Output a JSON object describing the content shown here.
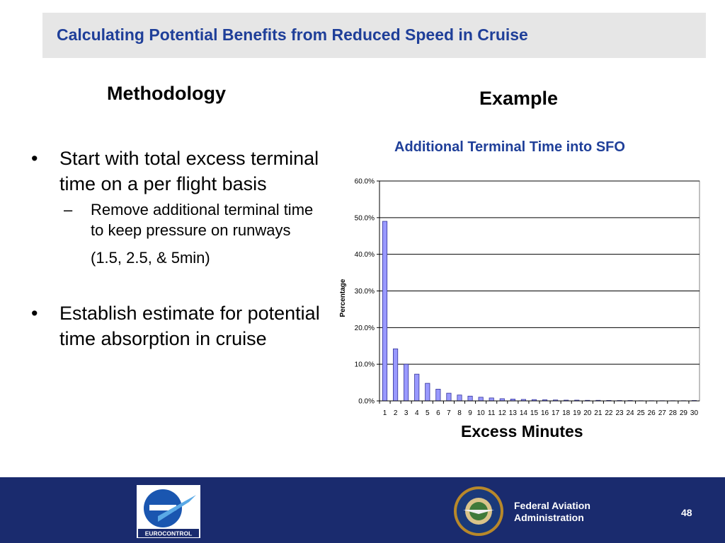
{
  "slide": {
    "title": "Calculating Potential Benefits from Reduced Speed in Cruise",
    "left_heading": "Methodology",
    "right_heading": "Example",
    "bullets": [
      {
        "text": "Start with total excess terminal time on a per flight basis",
        "sub": "Remove additional terminal time to keep pressure on runways",
        "sub_note": "(1.5, 2.5, & 5min)"
      },
      {
        "text": "Establish estimate for potential time absorption in cruise"
      }
    ],
    "footer": {
      "eurocontrol_label": "EUROCONTROL",
      "faa_line1": "Federal Aviation",
      "faa_line2": "Administration",
      "page_number": "48"
    }
  },
  "colors": {
    "title": "#1f3f99",
    "bar_fill": "#9999ff",
    "bar_stroke": "#333399",
    "footer_bg": "#1a2b6e",
    "title_bar_bg": "#e6e6e6"
  },
  "chart_data": {
    "type": "bar",
    "title": "Additional Terminal Time into SFO",
    "xlabel": "Excess Minutes",
    "ylabel": "Percentage",
    "ylim": [
      0,
      60
    ],
    "y_ticks": [
      "0.0%",
      "10.0%",
      "20.0%",
      "30.0%",
      "40.0%",
      "50.0%",
      "60.0%"
    ],
    "grid": true,
    "legend": "none",
    "categories": [
      "1",
      "2",
      "3",
      "4",
      "5",
      "6",
      "7",
      "8",
      "9",
      "10",
      "11",
      "12",
      "13",
      "14",
      "15",
      "16",
      "17",
      "18",
      "19",
      "20",
      "21",
      "22",
      "23",
      "24",
      "25",
      "26",
      "27",
      "28",
      "29",
      "30"
    ],
    "values": [
      49,
      14.2,
      10,
      7.3,
      4.8,
      3.2,
      2.1,
      1.6,
      1.3,
      1.0,
      0.8,
      0.6,
      0.5,
      0.4,
      0.35,
      0.3,
      0.25,
      0.2,
      0.2,
      0.15,
      0.15,
      0.12,
      0.1,
      0.1,
      0.05,
      0.05,
      0.05,
      0.05,
      0.05,
      0.1
    ]
  }
}
